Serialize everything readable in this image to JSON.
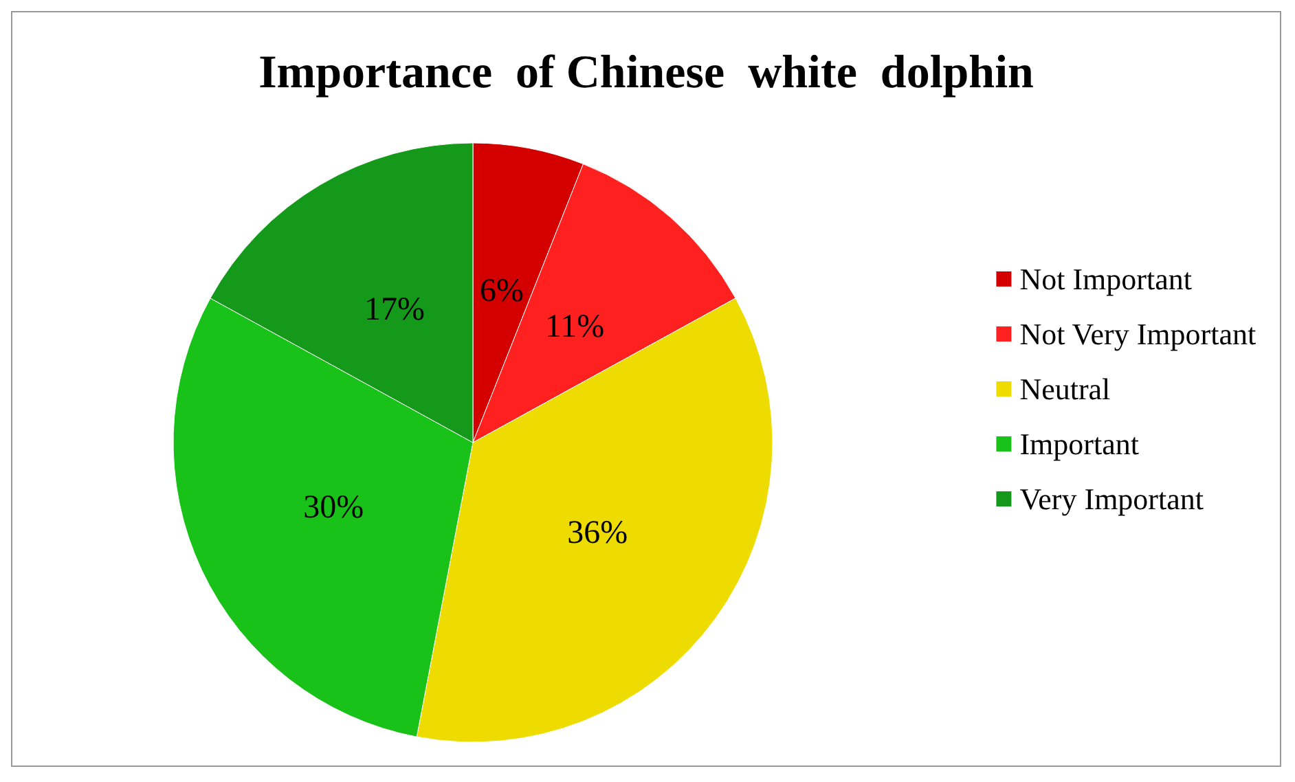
{
  "chart_data": {
    "type": "pie",
    "title": "Importance  of Chinese  white  dolphin",
    "categories": [
      "Not Important",
      "Not Very Important",
      "Neutral",
      "Important",
      "Very Important"
    ],
    "values": [
      6,
      11,
      36,
      30,
      17
    ],
    "colors": [
      "#d40000",
      "#ff2020",
      "#eedc00",
      "#18c218",
      "#14991a"
    ],
    "value_labels": [
      "6%",
      "11%",
      "36%",
      "30%",
      "17%"
    ],
    "legend": "right"
  }
}
